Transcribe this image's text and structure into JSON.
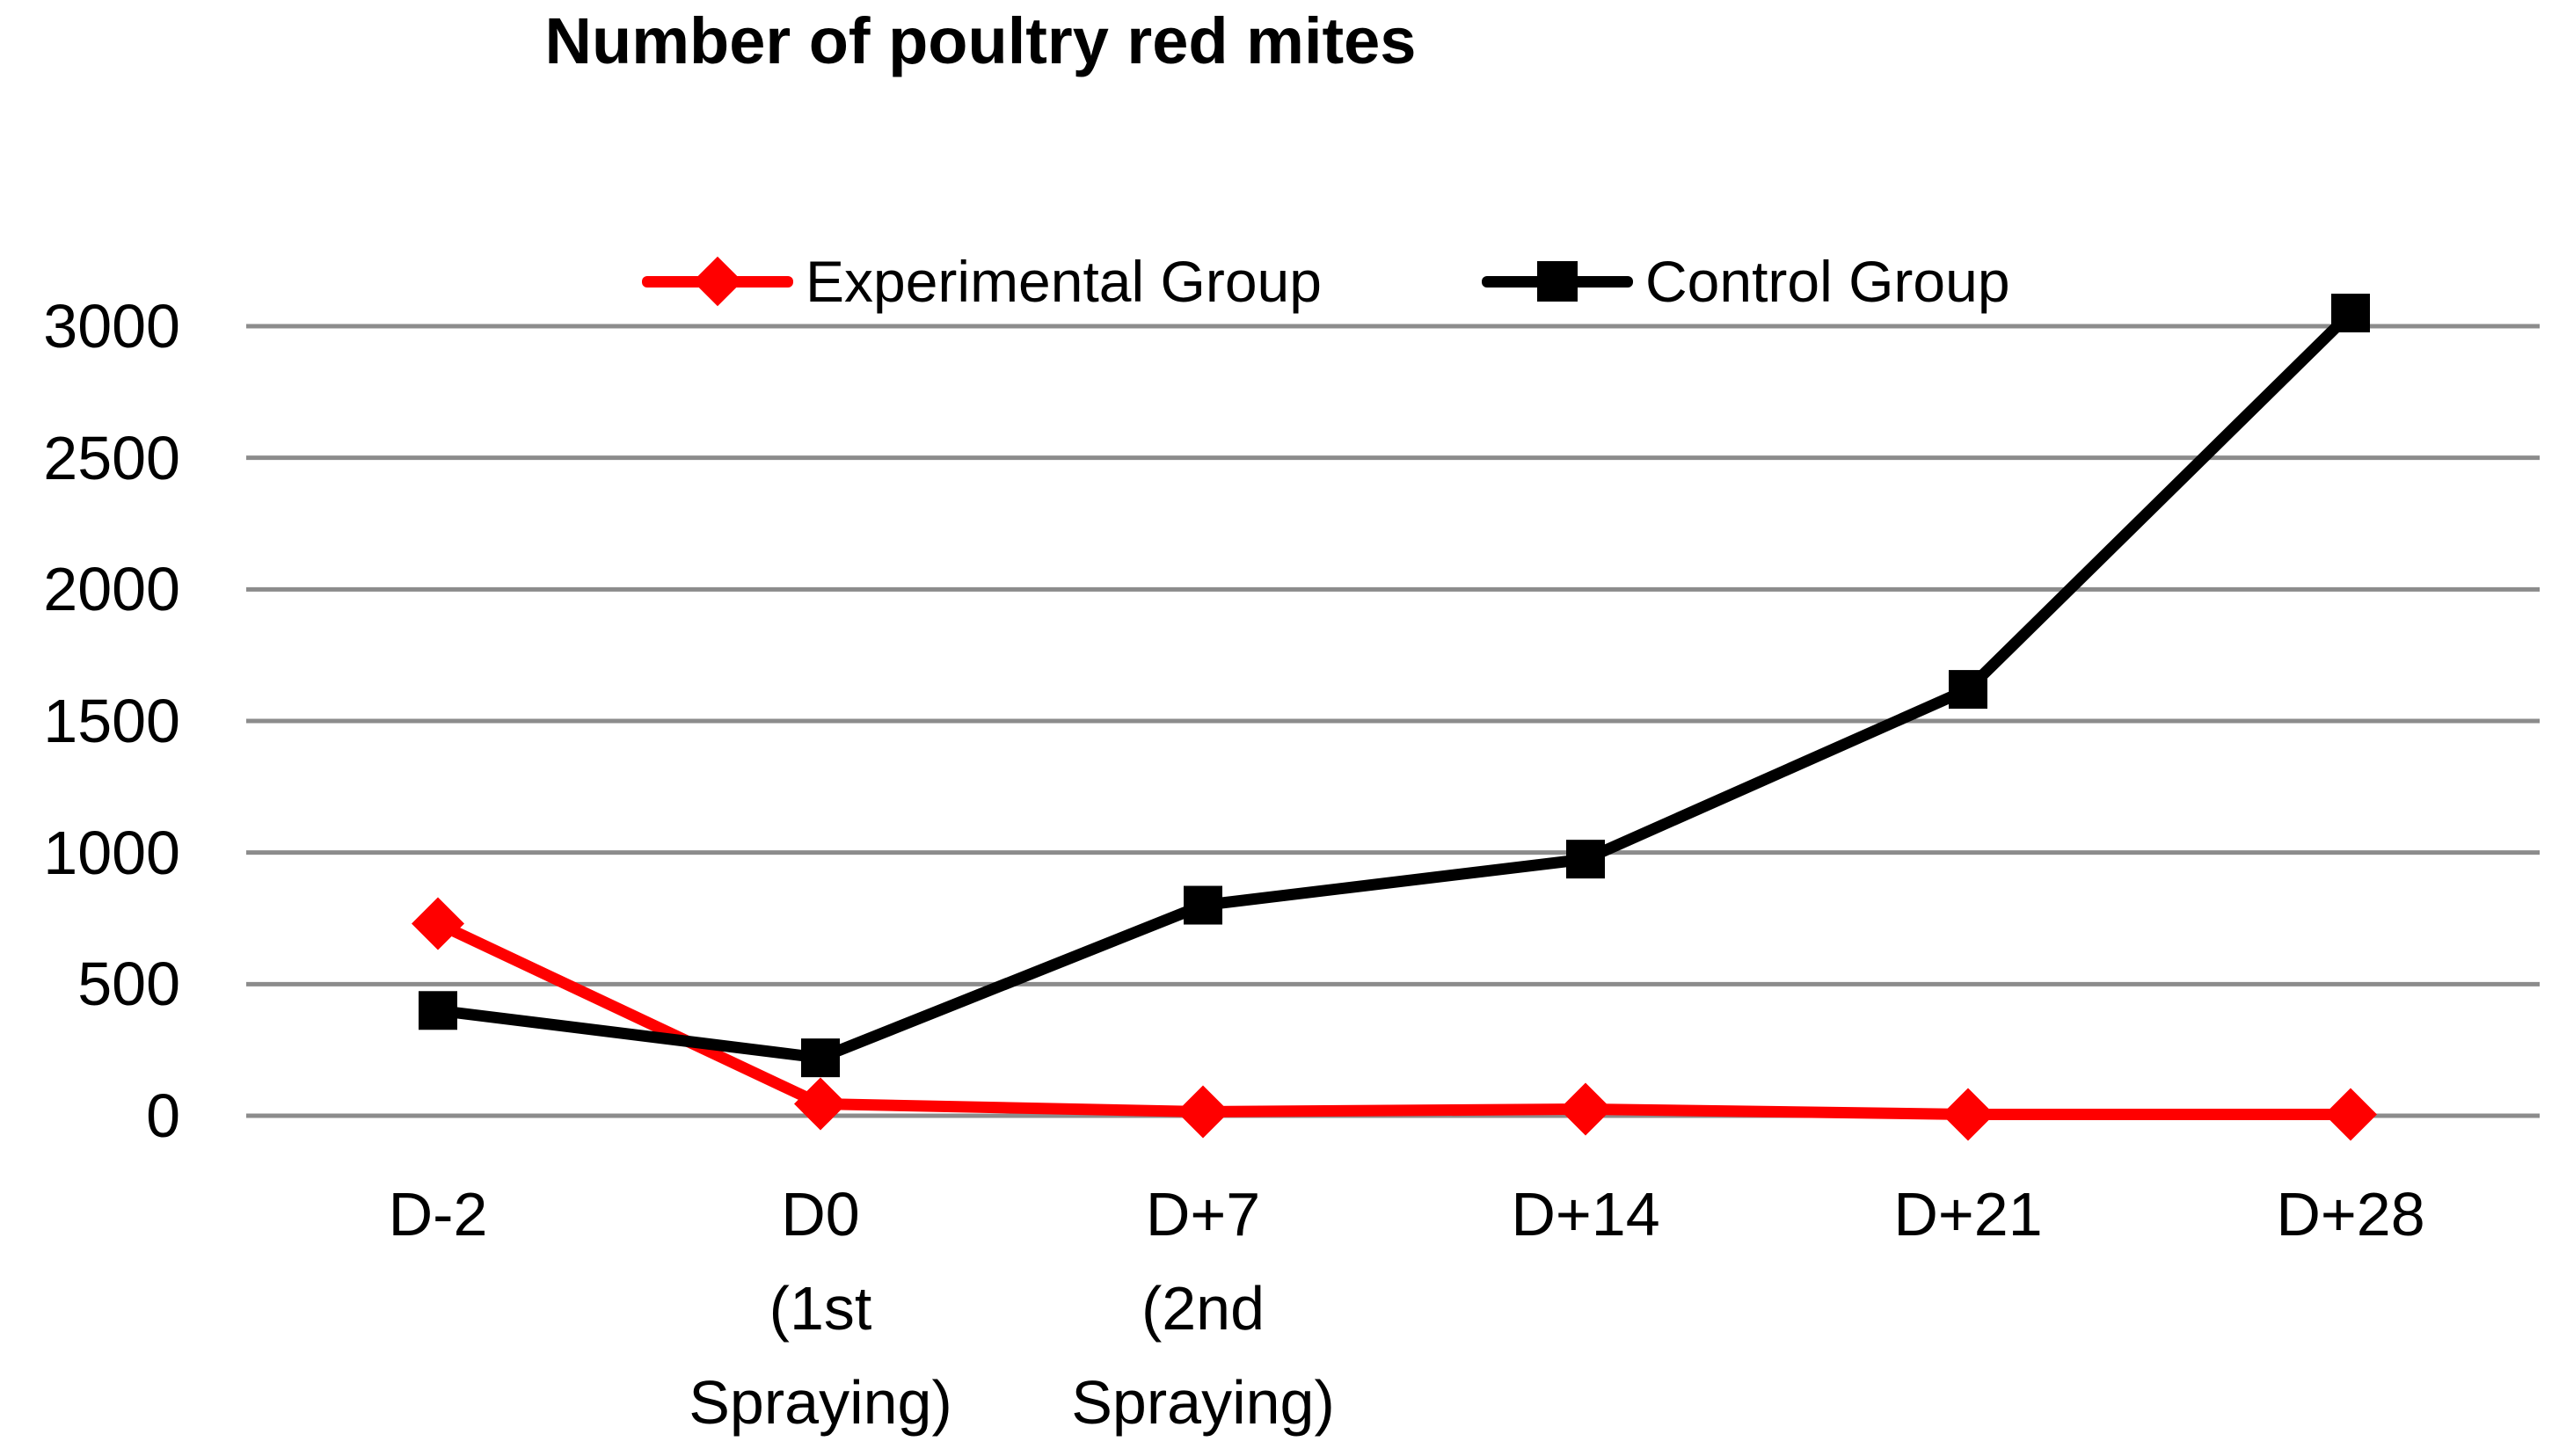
{
  "title": "Number of poultry red mites",
  "legend": {
    "items": [
      {
        "label": "Experimental Group",
        "color": "#FF0000",
        "marker": "diamond"
      },
      {
        "label": "Control Group",
        "color": "#000000",
        "marker": "square"
      }
    ]
  },
  "chart_data": {
    "type": "line",
    "title": "Number of poultry red mites",
    "categories": [
      "D-2",
      "D0 (1st Spraying)",
      "D+7 (2nd Spraying)",
      "D+14",
      "D+21",
      "D+28"
    ],
    "x_tick_lines": [
      [
        "D-2"
      ],
      [
        "D0",
        "(1st",
        "Spraying)"
      ],
      [
        "D+7",
        "(2nd",
        "Spraying)"
      ],
      [
        "D+14"
      ],
      [
        "D+21"
      ],
      [
        "D+28"
      ]
    ],
    "series": [
      {
        "name": "Experimental Group",
        "color": "#FF0000",
        "marker": "diamond",
        "values": [
          730,
          45,
          15,
          25,
          5,
          5
        ]
      },
      {
        "name": "Control Group",
        "color": "#000000",
        "marker": "square",
        "values": [
          400,
          220,
          800,
          975,
          1620,
          3050
        ]
      }
    ],
    "xlabel": "",
    "ylabel": "",
    "ylim": [
      0,
      3000
    ],
    "yticks": [
      0,
      500,
      1000,
      1500,
      2000,
      2500,
      3000
    ],
    "grid": true,
    "gridline_color": "#8C8C8C",
    "legend_position": "top-inside"
  }
}
